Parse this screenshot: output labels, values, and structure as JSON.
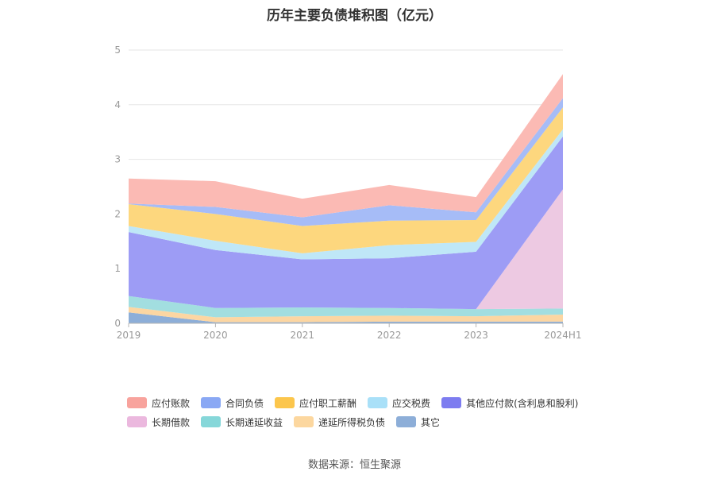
{
  "title": "历年主要负债堆积图（亿元）",
  "source": "数据来源：恒生聚源",
  "chart_data": {
    "type": "area",
    "stacked": true,
    "categories": [
      "2019",
      "2020",
      "2021",
      "2022",
      "2023",
      "2024H1"
    ],
    "ylim": [
      0,
      5
    ],
    "yticks": [
      "0",
      "1",
      "2",
      "3",
      "4",
      "5"
    ],
    "grid": true,
    "legend_position": "bottom",
    "series": [
      {
        "name": "其它",
        "color": "#8daed8",
        "values": [
          0.2,
          0.02,
          0.02,
          0.03,
          0.03,
          0.03
        ]
      },
      {
        "name": "递延所得税负债",
        "color": "#fcd6a2",
        "values": [
          0.1,
          0.09,
          0.11,
          0.11,
          0.1,
          0.13
        ]
      },
      {
        "name": "长期递延收益",
        "color": "#a2dee0",
        "values": [
          0.2,
          0.17,
          0.16,
          0.14,
          0.13,
          0.11
        ]
      },
      {
        "name": "长期借款",
        "color": "#edc9e2",
        "values": [
          0,
          0,
          0,
          0,
          0,
          2.18
        ]
      },
      {
        "name": "其他应付款(含利息和股利)",
        "color": "#9d9cf5",
        "values": [
          1.17,
          1.06,
          0.88,
          0.91,
          1.05,
          0.97
        ]
      },
      {
        "name": "应交税费",
        "color": "#bfe7f7",
        "values": [
          0.11,
          0.17,
          0.11,
          0.24,
          0.18,
          0.13
        ]
      },
      {
        "name": "应付职工薪酬",
        "color": "#fdd77e",
        "values": [
          0.4,
          0.49,
          0.5,
          0.45,
          0.4,
          0.4
        ]
      },
      {
        "name": "合同负债",
        "color": "#a6bcf7",
        "values": [
          0.01,
          0.13,
          0.16,
          0.28,
          0.14,
          0.17
        ]
      },
      {
        "name": "应付账款",
        "color": "#fbbab4",
        "values": [
          0.46,
          0.47,
          0.34,
          0.37,
          0.28,
          0.44
        ]
      }
    ]
  },
  "legend_rows": [
    [
      "应付账款",
      "合同负债",
      "应付职工薪酬",
      "应交税费",
      "其他应付款(含利息和股利)"
    ],
    [
      "长期借款",
      "长期递延收益",
      "递延所得税负债",
      "其它"
    ]
  ],
  "legend_colors": {
    "应付账款": "#f8a39d",
    "合同负债": "#8aa8f4",
    "应付职工薪酬": "#fcc64c",
    "应交税费": "#a9e0f8",
    "其他应付款(含利息和股利)": "#7d7cf0",
    "长期借款": "#ebb8de",
    "长期递延收益": "#86d7d9",
    "递延所得税负债": "#fcd79f",
    "其它": "#8daed8"
  }
}
